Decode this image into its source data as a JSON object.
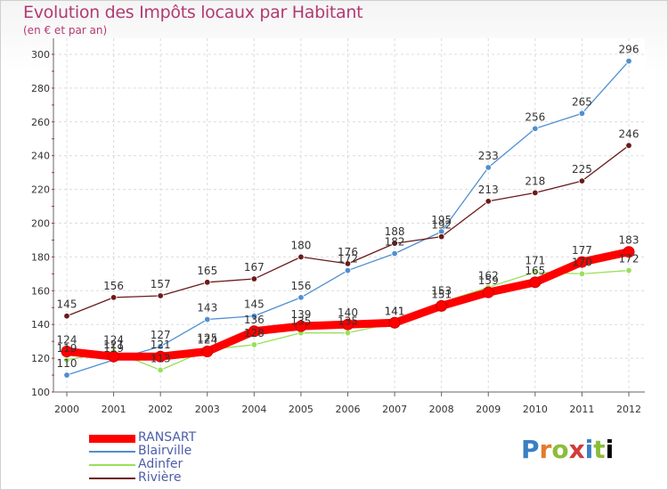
{
  "chart_data": {
    "type": "line",
    "title": "Evolution des Impôts locaux par Habitant",
    "subtitle": "(en € et par an)",
    "xlabel": "",
    "ylabel": "",
    "x": [
      "2000",
      "2001",
      "2002",
      "2003",
      "2004",
      "2005",
      "2006",
      "2007",
      "2008",
      "2009",
      "2010",
      "2011",
      "2012"
    ],
    "ylim": [
      100,
      300
    ],
    "yticks": [
      100,
      120,
      140,
      160,
      180,
      200,
      220,
      240,
      260,
      280,
      300
    ],
    "grid": true,
    "legend_position": "bottom-left",
    "series": [
      {
        "name": "RANSART",
        "color": "#ff0000",
        "values": [
          124,
          121,
          121,
          124,
          136,
          139,
          140,
          141,
          151,
          159,
          165,
          177,
          183
        ]
      },
      {
        "name": "Blairville",
        "color": "#4f8fd0",
        "values": [
          110,
          119,
          127,
          143,
          145,
          156,
          172,
          182,
          195,
          233,
          256,
          265,
          296
        ]
      },
      {
        "name": "Adinfer",
        "color": "#99e05a",
        "values": [
          119,
          124,
          113,
          125,
          128,
          135,
          135,
          141,
          153,
          162,
          171,
          170,
          172
        ]
      },
      {
        "name": "Rivière",
        "color": "#6b1a1a",
        "values": [
          145,
          156,
          157,
          165,
          167,
          180,
          176,
          188,
          192,
          213,
          218,
          225,
          246
        ]
      }
    ]
  },
  "logo": {
    "letters": [
      "P",
      "r",
      "o",
      "x",
      "i",
      "t",
      "i"
    ]
  }
}
